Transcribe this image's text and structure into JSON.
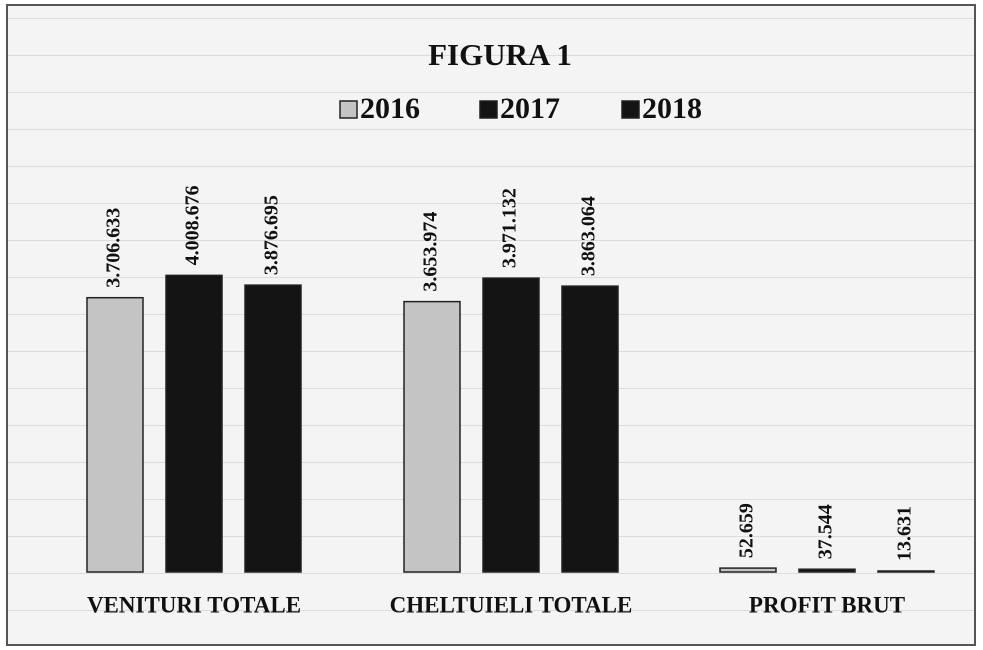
{
  "chart_data": {
    "type": "bar",
    "title": "FIGURA 1",
    "categories": [
      "VENITURI TOTALE",
      "CHELTUIELI TOTALE",
      "PROFIT BRUT"
    ],
    "series": [
      {
        "name": "2016",
        "color": "#c4c4c4",
        "values": [
          3706633,
          3653974,
          52659
        ],
        "value_labels": [
          "3.706.633",
          "3.653.974",
          "52.659"
        ]
      },
      {
        "name": "2017",
        "color": "#141414",
        "values": [
          4008676,
          3971132,
          37544
        ],
        "value_labels": [
          "4.008.676",
          "3.971.132",
          "37.544"
        ]
      },
      {
        "name": "2018",
        "color": "#141414",
        "values": [
          3876695,
          3863064,
          13631
        ],
        "value_labels": [
          "3.876.695",
          "3.863.064",
          "13.631"
        ]
      }
    ],
    "ylim": [
      0,
      4500000
    ],
    "legend": "top"
  }
}
